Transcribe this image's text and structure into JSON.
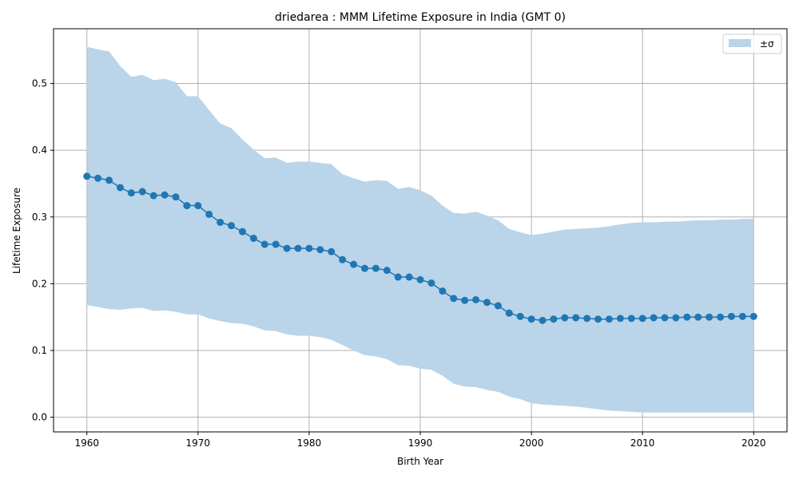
{
  "chart_data": {
    "type": "line",
    "title": "driedarea : MMM Lifetime Exposure in India (GMT 0)",
    "xlabel": "Birth Year",
    "ylabel": "Lifetime Exposure",
    "xlim": [
      1957,
      2023
    ],
    "ylim": [
      -0.022,
      0.582
    ],
    "xticks": [
      1960,
      1970,
      1980,
      1990,
      2000,
      2010,
      2020
    ],
    "xtick_labels": [
      "1960",
      "1970",
      "1980",
      "1990",
      "2000",
      "2010",
      "2020"
    ],
    "yticks": [
      0.0,
      0.1,
      0.2,
      0.3,
      0.4,
      0.5
    ],
    "ytick_labels": [
      "0.0",
      "0.1",
      "0.2",
      "0.3",
      "0.4",
      "0.5"
    ],
    "grid": true,
    "legend": {
      "placement": "top-right",
      "entries": [
        {
          "label": "±σ",
          "color": "#bad4e9"
        }
      ]
    },
    "colors": {
      "line": "#1f77b4",
      "band": "#bad4e9",
      "grid": "#b0b0b0"
    },
    "x": [
      1960,
      1961,
      1962,
      1963,
      1964,
      1965,
      1966,
      1967,
      1968,
      1969,
      1970,
      1971,
      1972,
      1973,
      1974,
      1975,
      1976,
      1977,
      1978,
      1979,
      1980,
      1981,
      1982,
      1983,
      1984,
      1985,
      1986,
      1987,
      1988,
      1989,
      1990,
      1991,
      1992,
      1993,
      1994,
      1995,
      1996,
      1997,
      1998,
      1999,
      2000,
      2001,
      2002,
      2003,
      2004,
      2005,
      2006,
      2007,
      2008,
      2009,
      2010,
      2011,
      2012,
      2013,
      2014,
      2015,
      2016,
      2017,
      2018,
      2019,
      2020
    ],
    "series": [
      {
        "values": [
          0.361,
          0.358,
          0.355,
          0.344,
          0.336,
          0.338,
          0.332,
          0.333,
          0.33,
          0.317,
          0.317,
          0.304,
          0.292,
          0.287,
          0.278,
          0.268,
          0.259,
          0.259,
          0.253,
          0.253,
          0.253,
          0.251,
          0.248,
          0.236,
          0.229,
          0.223,
          0.223,
          0.22,
          0.21,
          0.21,
          0.206,
          0.201,
          0.189,
          0.178,
          0.175,
          0.176,
          0.172,
          0.167,
          0.156,
          0.151,
          0.147,
          0.145,
          0.147,
          0.149,
          0.149,
          0.148,
          0.147,
          0.147,
          0.148,
          0.148,
          0.148,
          0.149,
          0.149,
          0.149,
          0.15,
          0.15,
          0.15,
          0.15,
          0.151,
          0.151,
          0.151
        ]
      }
    ],
    "band": {
      "upper": [
        0.555,
        0.551,
        0.548,
        0.526,
        0.51,
        0.513,
        0.505,
        0.507,
        0.502,
        0.481,
        0.481,
        0.46,
        0.44,
        0.433,
        0.416,
        0.401,
        0.388,
        0.389,
        0.381,
        0.383,
        0.383,
        0.381,
        0.379,
        0.364,
        0.358,
        0.353,
        0.355,
        0.354,
        0.342,
        0.345,
        0.34,
        0.332,
        0.317,
        0.306,
        0.305,
        0.308,
        0.302,
        0.295,
        0.282,
        0.277,
        0.273,
        0.275,
        0.278,
        0.281,
        0.282,
        0.283,
        0.284,
        0.286,
        0.289,
        0.291,
        0.292,
        0.292,
        0.293,
        0.293,
        0.294,
        0.295,
        0.295,
        0.296,
        0.296,
        0.297,
        0.297
      ],
      "lower": [
        0.168,
        0.165,
        0.162,
        0.161,
        0.163,
        0.164,
        0.159,
        0.16,
        0.158,
        0.154,
        0.154,
        0.148,
        0.144,
        0.141,
        0.14,
        0.136,
        0.13,
        0.129,
        0.124,
        0.122,
        0.122,
        0.12,
        0.116,
        0.108,
        0.1,
        0.093,
        0.091,
        0.087,
        0.078,
        0.077,
        0.073,
        0.071,
        0.062,
        0.05,
        0.046,
        0.045,
        0.041,
        0.038,
        0.031,
        0.027,
        0.021,
        0.019,
        0.018,
        0.017,
        0.016,
        0.014,
        0.012,
        0.01,
        0.009,
        0.008,
        0.007,
        0.007,
        0.007,
        0.007,
        0.007,
        0.007,
        0.007,
        0.007,
        0.007,
        0.007,
        0.007
      ]
    }
  }
}
